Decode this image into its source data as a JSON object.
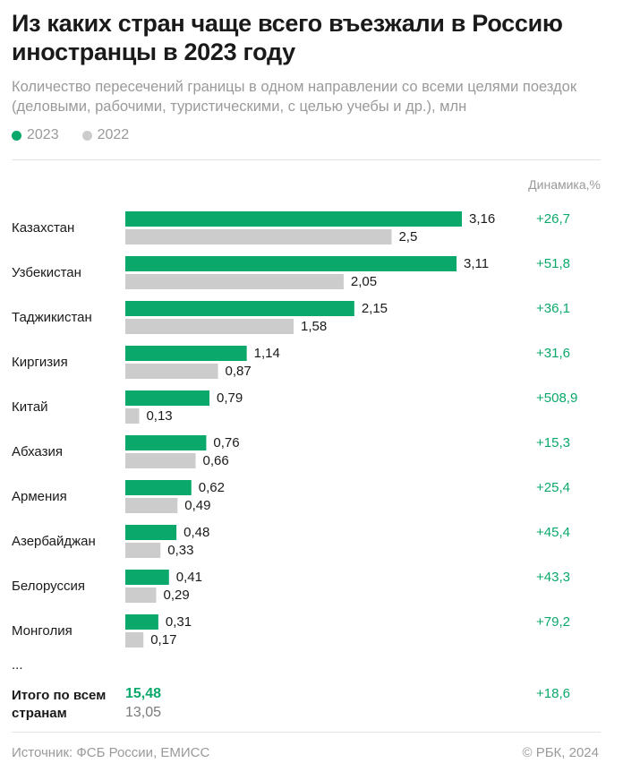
{
  "title": "Из каких стран чаще всего въезжали в Россию иностранцы в 2023 году",
  "subtitle": "Количество пересечений границы в одном направлении со всеми целями поездок (деловыми, рабочими, туристическими, с целью учебы и др.), млн",
  "legend": [
    {
      "label": "2023",
      "color": "#0aa86b"
    },
    {
      "label": "2022",
      "color": "#cccccc"
    }
  ],
  "dynamics_header": "Динамика,%",
  "chart_data": {
    "type": "bar",
    "orientation": "horizontal",
    "categories": [
      "Казахстан",
      "Узбекистан",
      "Таджикистан",
      "Киргизия",
      "Китай",
      "Абхазия",
      "Армения",
      "Азербайджан",
      "Белоруссия",
      "Монголия"
    ],
    "series": [
      {
        "name": "2023",
        "color": "#0aa86b",
        "values": [
          3.16,
          3.11,
          2.15,
          1.14,
          0.79,
          0.76,
          0.62,
          0.48,
          0.41,
          0.31
        ]
      },
      {
        "name": "2022",
        "color": "#cccccc",
        "values": [
          2.5,
          2.05,
          1.58,
          0.87,
          0.13,
          0.66,
          0.49,
          0.33,
          0.29,
          0.17
        ]
      }
    ],
    "value_labels_2023": [
      "3,16",
      "3,11",
      "2,15",
      "1,14",
      "0,79",
      "0,76",
      "0,62",
      "0,48",
      "0,41",
      "0,31"
    ],
    "value_labels_2022": [
      "2,5",
      "2,05",
      "1,58",
      "0,87",
      "0,13",
      "0,66",
      "0,49",
      "0,33",
      "0,29",
      "0,17"
    ],
    "dynamics": [
      "+26,7",
      "+51,8",
      "+36,1",
      "+31,6",
      "+508,9",
      "+15,3",
      "+25,4",
      "+45,4",
      "+43,3",
      "+79,2"
    ],
    "xlim": [
      0,
      3.2
    ]
  },
  "ellipsis": "...",
  "total": {
    "label": "Итого по всем странам",
    "value_2023": "15,48",
    "value_2022": "13,05",
    "dynamics": "+18,6"
  },
  "footer": {
    "source": "Источник: ФСБ России, ЕМИСС",
    "copyright": "© РБК, 2024"
  }
}
